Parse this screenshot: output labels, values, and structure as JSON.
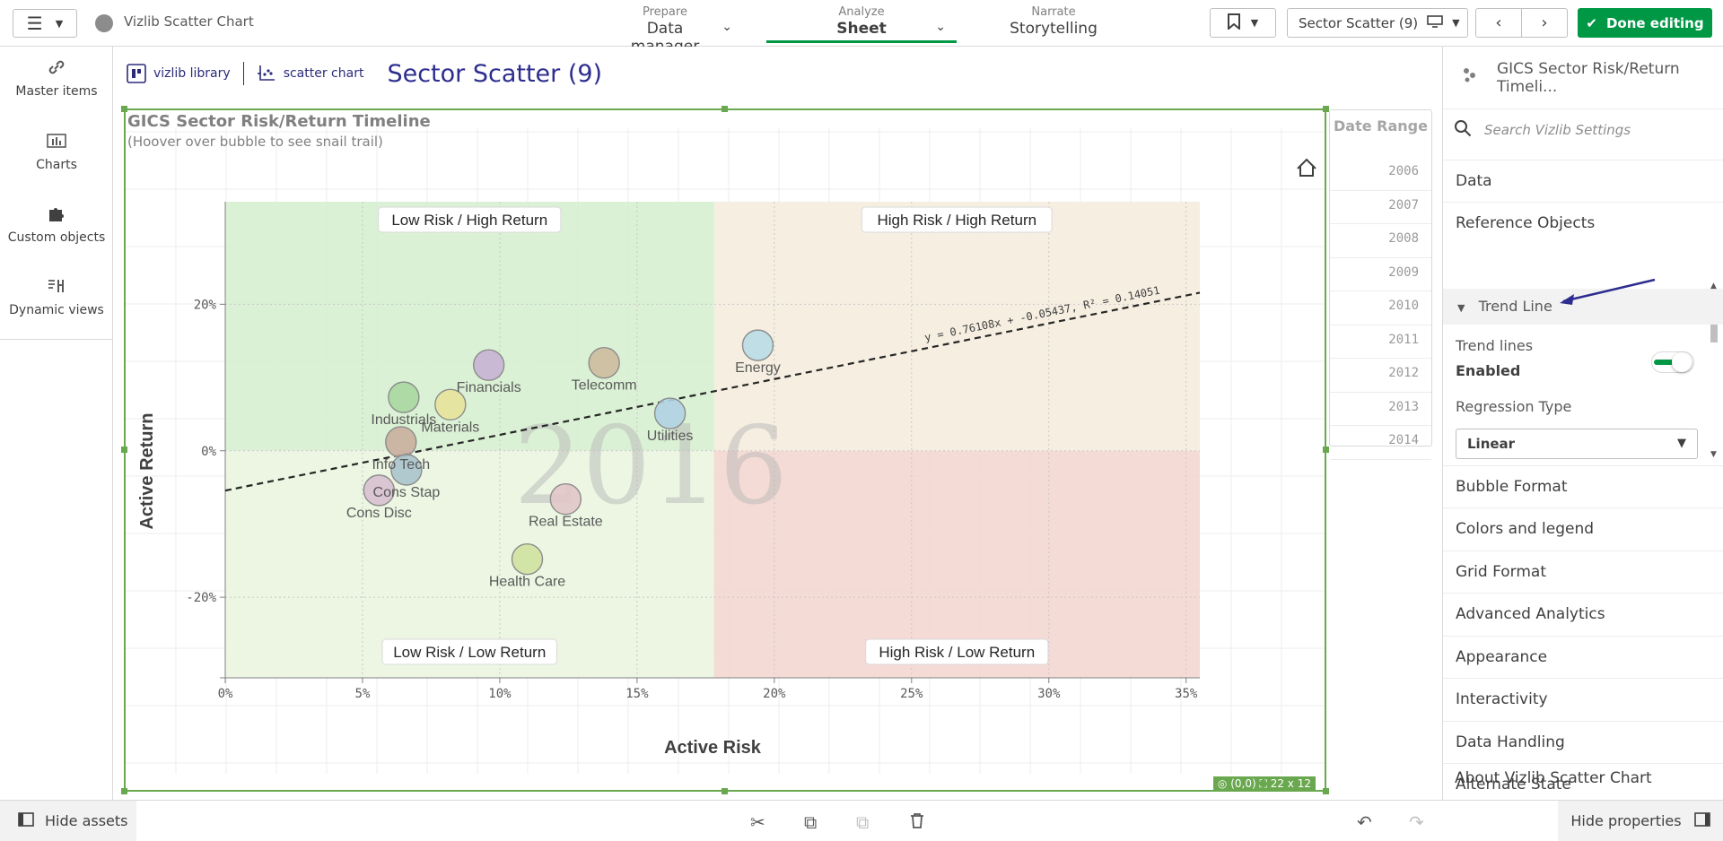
{
  "app": {
    "title": "Vizlib Scatter Chart"
  },
  "nav": {
    "prepare": {
      "sub": "Prepare",
      "main": "Data manager"
    },
    "analyze": {
      "sub": "Analyze",
      "main": "Sheet"
    },
    "narrate": {
      "sub": "Narrate",
      "main": "Storytelling"
    }
  },
  "toolbar": {
    "sheet_selector": "Sector Scatter (9)",
    "done_label": "Done editing"
  },
  "left_panel": {
    "items": [
      "Master items",
      "Charts",
      "Custom objects",
      "Dynamic views"
    ]
  },
  "sheet": {
    "title": "Sector Scatter (9)",
    "logo1": "vizlib library",
    "logo2": "scatter chart"
  },
  "chart": {
    "title": "GICS Sector Risk/Return Timeline",
    "subtitle": "(Hoover over bubble to see snail trail)",
    "size_badge_pos": "(0,0)",
    "size_badge_dims": "22 x 12",
    "quadrants": {
      "top_left": "Low Risk / High Return",
      "top_right": "High Risk / High Return",
      "bottom_left": "Low Risk / Low Return",
      "bottom_right": "High Risk / Low Return"
    },
    "watermark": "2016",
    "trend_equation": "y = 0.76108x + -0.05437, R² = 0.14051"
  },
  "chart_data": {
    "type": "scatter",
    "title": "GICS Sector Risk/Return Timeline",
    "xlabel": "Active Risk",
    "ylabel": "Active Return",
    "xlim": [
      0,
      35.5
    ],
    "ylim": [
      -31,
      34
    ],
    "xticks": [
      0,
      5,
      10,
      15,
      20,
      25,
      30,
      35
    ],
    "xtick_labels": [
      "0%",
      "5%",
      "10%",
      "15%",
      "20%",
      "25%",
      "30%",
      "35%"
    ],
    "yticks": [
      20,
      0,
      -20
    ],
    "ytick_labels": [
      "20%",
      "0%",
      "-20%"
    ],
    "quadrant_split": {
      "x": 17.8,
      "y": 0
    },
    "trend_line": {
      "slope": 0.76108,
      "intercept": -5.437
    },
    "points": [
      {
        "label": "Industrials",
        "x": 6.5,
        "y": 7.3,
        "color": "#a8d8a0"
      },
      {
        "label": "Financials",
        "x": 9.6,
        "y": 11.7,
        "color": "#c7b3d4"
      },
      {
        "label": "Telecomm",
        "x": 13.8,
        "y": 12.0,
        "color": "#cdbb9d"
      },
      {
        "label": "Materials",
        "x": 8.2,
        "y": 6.3,
        "color": "#e6e29a"
      },
      {
        "label": "Energy",
        "x": 19.4,
        "y": 14.4,
        "color": "#b9dbe6"
      },
      {
        "label": "Utilities",
        "x": 16.2,
        "y": 5.1,
        "color": "#b0d2e3"
      },
      {
        "label": "Info Tech",
        "x": 6.4,
        "y": 1.2,
        "color": "#c9ae9d"
      },
      {
        "label": "Cons Stap",
        "x": 6.6,
        "y": -2.6,
        "color": "#aac4cc"
      },
      {
        "label": "Cons Disc",
        "x": 5.6,
        "y": -5.4,
        "color": "#d8c0d0"
      },
      {
        "label": "Real Estate",
        "x": 12.4,
        "y": -6.6,
        "color": "#e2c6c8"
      },
      {
        "label": "Health Care",
        "x": 11.0,
        "y": -14.8,
        "color": "#cfe39e"
      }
    ]
  },
  "date_range": {
    "title": "Date Range",
    "years": [
      "2006",
      "2007",
      "2008",
      "2009",
      "2010",
      "2011",
      "2012",
      "2013",
      "2014"
    ]
  },
  "right_panel": {
    "header": "GICS Sector Risk/Return Timeli...",
    "search_placeholder": "Search Vizlib Settings",
    "items_top": [
      "Data",
      "Reference Objects"
    ],
    "section": "Trend Line",
    "trend_lines_label": "Trend lines",
    "trend_lines_value": "Enabled",
    "regression_label": "Regression Type",
    "regression_value": "Linear",
    "items_bottom": [
      "Bubble Format",
      "Colors and legend",
      "Grid Format",
      "Advanced Analytics",
      "Appearance",
      "Interactivity",
      "Data Handling",
      "Alternate State",
      "About Vizlib Scatter Chart"
    ]
  },
  "bottom": {
    "hide_assets": "Hide assets",
    "hide_properties": "Hide properties"
  },
  "colors": {
    "accent": "#009845",
    "selection": "#6aa84f",
    "title_blue": "#2d2d8f",
    "annotation_arrow": "#2d2d8f"
  }
}
